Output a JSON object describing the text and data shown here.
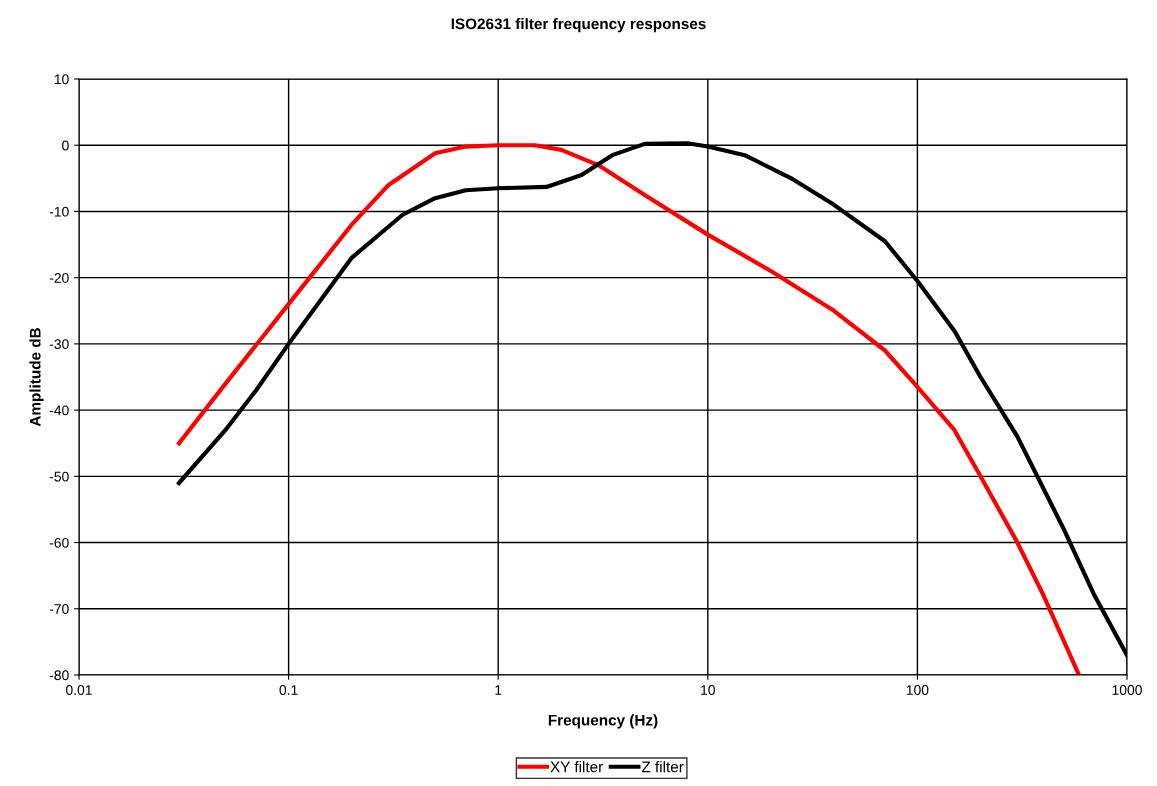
{
  "chart_data": {
    "type": "line",
    "title": "ISO2631 filter frequency responses",
    "xlabel": "Frequency (Hz)",
    "ylabel": "Amplitude dB",
    "log": "x",
    "grid": true,
    "legend": "bottom",
    "marker": "none",
    "line_style": "solid",
    "xlim": [
      0.01,
      1000
    ],
    "xticks": [
      0.01,
      0.1,
      1,
      10,
      100,
      1000
    ],
    "ylim": [
      -80,
      10
    ],
    "yticks": [
      10,
      0,
      -10,
      -20,
      -30,
      -40,
      -50,
      -60,
      -70,
      -80
    ],
    "series": [
      {
        "name": "XY filter",
        "color": "#ff0000",
        "x": [
          0.03,
          0.05,
          0.1,
          0.2,
          0.3,
          0.5,
          0.7,
          1,
          1.5,
          2,
          3,
          5,
          10,
          20,
          40,
          70,
          100,
          150,
          200,
          300,
          400,
          590
        ],
        "values": [
          -45,
          -36,
          -24,
          -12,
          -6,
          -1.2,
          -0.2,
          0,
          0,
          -0.7,
          -3,
          -7.5,
          -13.5,
          -19,
          -25,
          -31,
          -36.5,
          -43,
          -50,
          -60,
          -68,
          -80
        ]
      },
      {
        "name": "Z filter",
        "color": "#000000",
        "x": [
          0.03,
          0.05,
          0.07,
          0.1,
          0.2,
          0.35,
          0.5,
          0.7,
          1,
          1.7,
          2.5,
          3.5,
          5,
          8,
          10,
          15,
          25,
          40,
          70,
          100,
          150,
          200,
          300,
          500,
          700,
          1000
        ],
        "values": [
          -51,
          -43,
          -37,
          -30,
          -17,
          -10.5,
          -8,
          -6.8,
          -6.5,
          -6.3,
          -4.5,
          -1.5,
          0.2,
          0.3,
          -0.2,
          -1.5,
          -5,
          -9,
          -14.5,
          -20.5,
          -28,
          -35,
          -44,
          -58,
          -68,
          -77
        ]
      }
    ]
  }
}
